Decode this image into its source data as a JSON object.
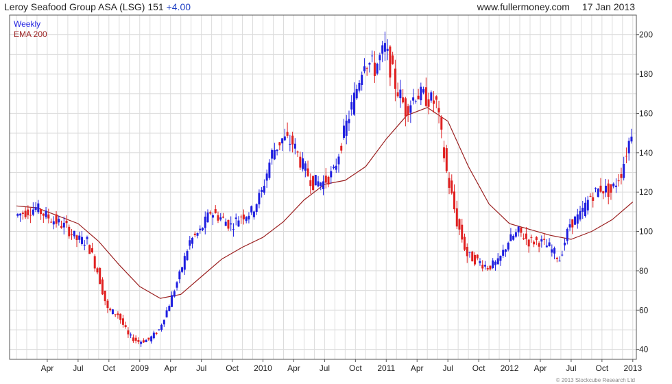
{
  "header": {
    "title": "Leroy Seafood Group ASA (LSG) 151",
    "change": "+4.00",
    "site": "www.fullermoney.com",
    "date": "17 Jan 2013"
  },
  "legend": {
    "weekly": "Weekly",
    "ema": "EMA 200"
  },
  "copyright": "© 2013 Stockcube Research Ltd",
  "colors": {
    "up": "#1f1fe0",
    "down": "#e02020",
    "ema": "#9a1f1f",
    "grid": "#dcdcdc",
    "title_change": "#1f3fc4"
  },
  "chart_data": {
    "type": "line",
    "grid": true,
    "y_axis_side": "right",
    "ylim": [
      35,
      210
    ],
    "y_ticks": [
      40,
      60,
      80,
      100,
      120,
      140,
      160,
      180,
      200
    ],
    "x_ticks": [
      "Apr",
      "Jul",
      "Oct",
      "2009",
      "Apr",
      "Jul",
      "Oct",
      "2010",
      "Apr",
      "Jul",
      "Oct",
      "2011",
      "Apr",
      "Jul",
      "Oct",
      "2012",
      "Apr",
      "Jul",
      "Oct",
      "2013"
    ],
    "series": [
      {
        "name": "Weekly",
        "style": "candlestick",
        "x": [
          "2008-01",
          "2008-02",
          "2008-03",
          "2008-04",
          "2008-05",
          "2008-06",
          "2008-07",
          "2008-08",
          "2008-09",
          "2008-10",
          "2008-11",
          "2008-12",
          "2009-01",
          "2009-02",
          "2009-03",
          "2009-04",
          "2009-05",
          "2009-06",
          "2009-07",
          "2009-08",
          "2009-09",
          "2009-10",
          "2009-11",
          "2009-12",
          "2010-01",
          "2010-02",
          "2010-03",
          "2010-04",
          "2010-05",
          "2010-06",
          "2010-07",
          "2010-08",
          "2010-09",
          "2010-10",
          "2010-11",
          "2010-12",
          "2011-01",
          "2011-02",
          "2011-03",
          "2011-04",
          "2011-05",
          "2011-06",
          "2011-07",
          "2011-08",
          "2011-09",
          "2011-10",
          "2011-11",
          "2011-12",
          "2012-01",
          "2012-02",
          "2012-03",
          "2012-04",
          "2012-05",
          "2012-06",
          "2012-07",
          "2012-08",
          "2012-09",
          "2012-10",
          "2012-11",
          "2012-12",
          "2013-01"
        ],
        "values": [
          108,
          110,
          112,
          108,
          105,
          102,
          96,
          95,
          80,
          60,
          58,
          47,
          44,
          45,
          50,
          63,
          78,
          95,
          100,
          110,
          107,
          103,
          108,
          110,
          120,
          140,
          147,
          145,
          133,
          125,
          125,
          130,
          150,
          168,
          188,
          183,
          193,
          175,
          162,
          170,
          168,
          165,
          130,
          105,
          88,
          85,
          82,
          84,
          95,
          100,
          95,
          95,
          92,
          86,
          104,
          108,
          118,
          122,
          120,
          130,
          151
        ]
      },
      {
        "name": "EMA 200",
        "style": "line",
        "x": [
          "2008-01",
          "2008-03",
          "2008-05",
          "2008-07",
          "2008-09",
          "2008-11",
          "2009-01",
          "2009-03",
          "2009-05",
          "2009-07",
          "2009-09",
          "2009-11",
          "2010-01",
          "2010-03",
          "2010-05",
          "2010-07",
          "2010-09",
          "2010-11",
          "2011-01",
          "2011-03",
          "2011-05",
          "2011-07",
          "2011-09",
          "2011-11",
          "2012-01",
          "2012-03",
          "2012-05",
          "2012-07",
          "2012-09",
          "2012-11",
          "2013-01"
        ],
        "values": [
          113,
          112,
          108,
          104,
          95,
          83,
          72,
          66,
          68,
          77,
          86,
          92,
          97,
          105,
          116,
          124,
          126,
          133,
          147,
          159,
          163,
          156,
          133,
          114,
          104,
          101,
          98,
          96,
          100,
          106,
          115
        ]
      }
    ]
  }
}
